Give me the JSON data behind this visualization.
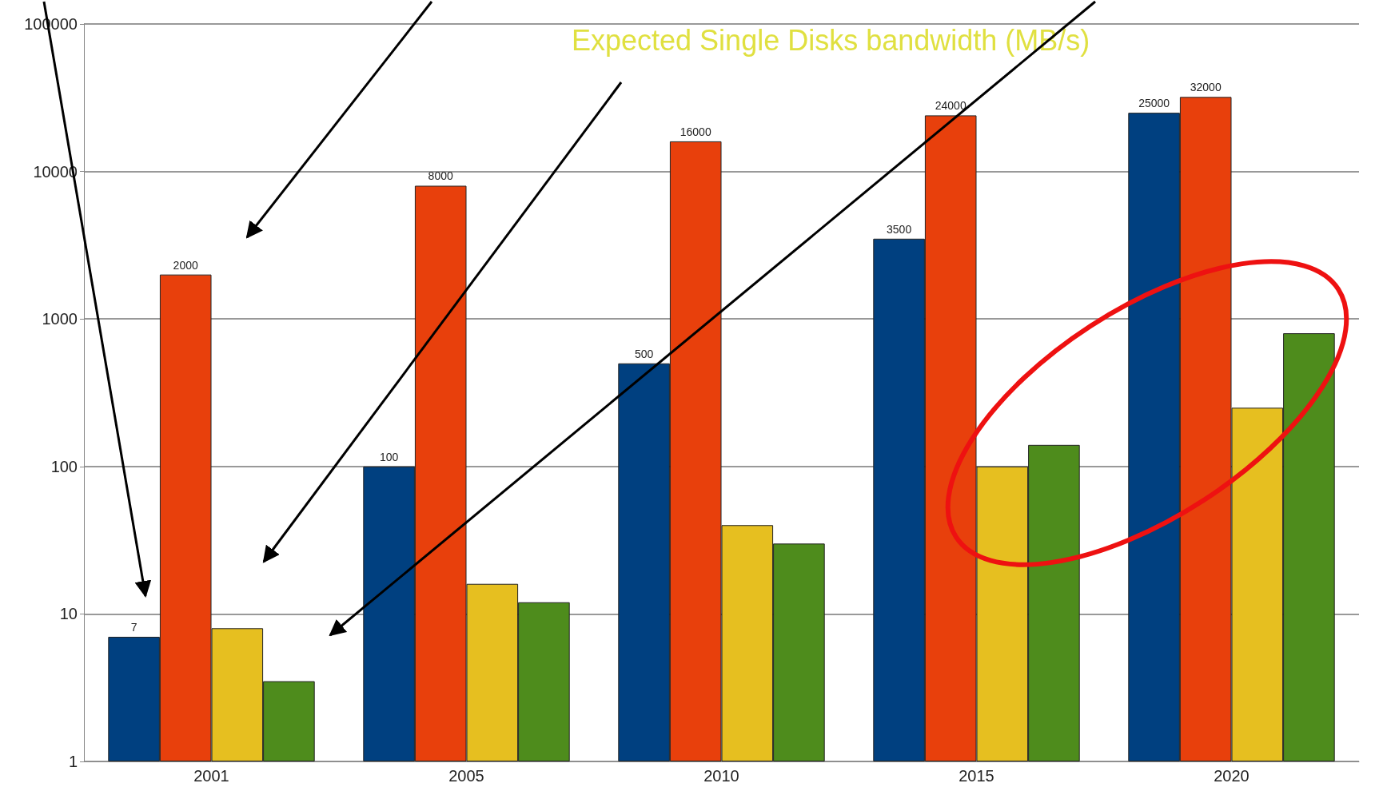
{
  "chart_data": {
    "type": "bar",
    "categories": [
      "2001",
      "2005",
      "2010",
      "2015",
      "2020"
    ],
    "series": [
      {
        "color": "#004080",
        "values": [
          7,
          100,
          500,
          3500,
          25000
        ],
        "value_labels": [
          "7",
          "100",
          "500",
          "3500",
          "25000"
        ]
      },
      {
        "color": "#e8400c",
        "values": [
          2000,
          8000,
          16000,
          24000,
          32000
        ],
        "value_labels": [
          "2000",
          "8000",
          "16000",
          "24000",
          "32000"
        ]
      },
      {
        "color": "#e6bf20",
        "values": [
          8,
          16,
          40,
          100,
          250
        ]
      },
      {
        "color": "#4e8c1c",
        "values": [
          3.5,
          12,
          30,
          140,
          800
        ]
      }
    ],
    "log": true,
    "ylim": [
      1,
      100000
    ],
    "yticks": [
      1,
      10,
      100,
      1000,
      10000,
      100000
    ],
    "grid": "y",
    "annotations": [
      "Expected Single Disks bandwidth (MB/s)"
    ]
  }
}
